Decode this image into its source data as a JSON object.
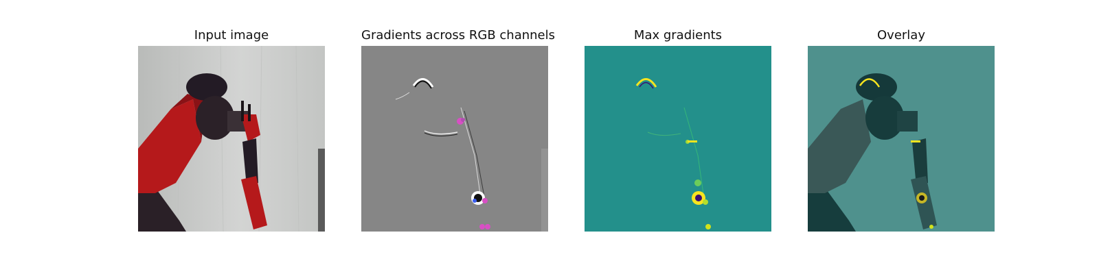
{
  "figure": {
    "panels": [
      {
        "title": "Input image"
      },
      {
        "title": "Gradients across RGB channels"
      },
      {
        "title": "Max gradients"
      },
      {
        "title": "Overlay"
      }
    ],
    "colors": {
      "input_background": "#c9cac9",
      "rgb_gradient_background": "#868686",
      "max_gradient_background": "#23908b",
      "overlay_background": "#4f918d",
      "robot_red": "#b5191b",
      "robot_dark": "#231b25",
      "gradient_magenta": "#d84fc4",
      "gradient_yellow": "#f7e41f"
    }
  }
}
